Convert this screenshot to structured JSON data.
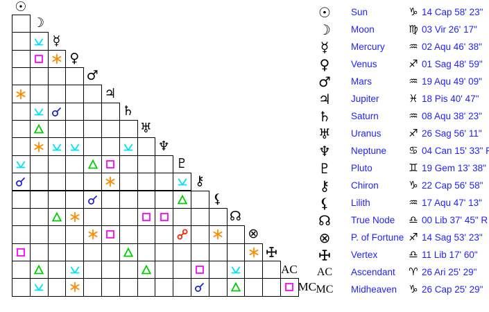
{
  "title": "Aspect grid with planet positions",
  "colors": {
    "conjunction": "#2222dd",
    "sextile": "#ff8c00",
    "square": "#ff00ff",
    "trine": "#00cc00",
    "quincunx": "#00e0ff",
    "opposition": "#ff2200",
    "legend_text": "#1f1fff",
    "glyph": "#000000"
  },
  "planets": [
    {
      "id": "sun",
      "glyph": "☉",
      "name": "Sun",
      "sign": "♑",
      "position": "14 Cap 58' 23\""
    },
    {
      "id": "moon",
      "glyph": "☽",
      "name": "Moon",
      "sign": "♍",
      "position": "03 Vir 26' 17\""
    },
    {
      "id": "mercury",
      "glyph": "☿",
      "name": "Mercury",
      "sign": "♒",
      "position": "02 Aqu 46' 38\""
    },
    {
      "id": "venus",
      "glyph": "♀",
      "name": "Venus",
      "sign": "♐",
      "position": "01 Sag 48' 59\""
    },
    {
      "id": "mars",
      "glyph": "♂",
      "name": "Mars",
      "sign": "♒",
      "position": "19 Aqu 49' 09\""
    },
    {
      "id": "jupiter",
      "glyph": "♃",
      "name": "Jupiter",
      "sign": "♓",
      "position": "18 Pis 40' 47\""
    },
    {
      "id": "saturn",
      "glyph": "♄",
      "name": "Saturn",
      "sign": "♒",
      "position": "08 Aqu 38' 23\""
    },
    {
      "id": "uranus",
      "glyph": "♅",
      "name": "Uranus",
      "sign": "♐",
      "position": "26 Sag 56' 11\""
    },
    {
      "id": "neptune",
      "glyph": "♆",
      "name": "Neptune",
      "sign": "♋",
      "position": "04 Can 15' 33\" R"
    },
    {
      "id": "pluto",
      "glyph": "♇",
      "name": "Pluto",
      "sign": "♊",
      "position": "19 Gem 13' 38\" R"
    },
    {
      "id": "chiron",
      "glyph": "⚷",
      "name": "Chiron",
      "sign": "♑",
      "position": "22 Cap 56' 58\""
    },
    {
      "id": "lilith",
      "glyph": "⚸",
      "name": "Lilith",
      "sign": "♒",
      "position": "17 Aqu 47' 13\""
    },
    {
      "id": "true-node",
      "glyph": "☊",
      "name": "True Node",
      "sign": "♎",
      "position": "00 Lib 37' 45\" R"
    },
    {
      "id": "fortune",
      "glyph": "⊗",
      "name": "P. of Fortune",
      "sign": "♐",
      "position": "14 Sag 53' 23\""
    },
    {
      "id": "vertex",
      "glyph": "svg-cross",
      "name": "Vertex",
      "sign": "♎",
      "position": "11 Lib 17' 60\""
    },
    {
      "id": "ascendant",
      "glyph": "AC",
      "name": "Ascendant",
      "sign": "♈",
      "position": "26 Ari 25' 29\""
    },
    {
      "id": "midheaven",
      "glyph": "MC",
      "name": "Midheaven",
      "sign": "♑",
      "position": "26 Cap 25' 29\""
    }
  ],
  "aspects": [
    {
      "r": 2,
      "c": 1,
      "t": "quincunx"
    },
    {
      "r": 3,
      "c": 1,
      "t": "square"
    },
    {
      "r": 3,
      "c": 2,
      "t": "sextile"
    },
    {
      "r": 5,
      "c": 0,
      "t": "sextile"
    },
    {
      "r": 6,
      "c": 1,
      "t": "quincunx"
    },
    {
      "r": 6,
      "c": 2,
      "t": "conjunction"
    },
    {
      "r": 7,
      "c": 1,
      "t": "trine"
    },
    {
      "r": 8,
      "c": 1,
      "t": "sextile"
    },
    {
      "r": 8,
      "c": 2,
      "t": "quincunx"
    },
    {
      "r": 8,
      "c": 3,
      "t": "quincunx"
    },
    {
      "r": 8,
      "c": 6,
      "t": "quincunx"
    },
    {
      "r": 9,
      "c": 0,
      "t": "quincunx"
    },
    {
      "r": 9,
      "c": 4,
      "t": "trine"
    },
    {
      "r": 9,
      "c": 5,
      "t": "square"
    },
    {
      "r": 10,
      "c": 0,
      "t": "conjunction"
    },
    {
      "r": 10,
      "c": 5,
      "t": "sextile"
    },
    {
      "r": 10,
      "c": 9,
      "t": "quincunx"
    },
    {
      "r": 11,
      "c": 4,
      "t": "conjunction"
    },
    {
      "r": 11,
      "c": 9,
      "t": "trine"
    },
    {
      "r": 12,
      "c": 2,
      "t": "trine"
    },
    {
      "r": 12,
      "c": 3,
      "t": "sextile"
    },
    {
      "r": 12,
      "c": 7,
      "t": "square"
    },
    {
      "r": 12,
      "c": 8,
      "t": "square"
    },
    {
      "r": 13,
      "c": 4,
      "t": "sextile"
    },
    {
      "r": 13,
      "c": 5,
      "t": "square"
    },
    {
      "r": 13,
      "c": 9,
      "t": "opposition"
    },
    {
      "r": 13,
      "c": 11,
      "t": "sextile"
    },
    {
      "r": 14,
      "c": 0,
      "t": "square"
    },
    {
      "r": 14,
      "c": 6,
      "t": "trine"
    },
    {
      "r": 14,
      "c": 13,
      "t": "sextile"
    },
    {
      "r": 15,
      "c": 1,
      "t": "trine"
    },
    {
      "r": 15,
      "c": 3,
      "t": "quincunx"
    },
    {
      "r": 15,
      "c": 7,
      "t": "trine"
    },
    {
      "r": 15,
      "c": 10,
      "t": "square"
    },
    {
      "r": 15,
      "c": 12,
      "t": "quincunx"
    },
    {
      "r": 16,
      "c": 1,
      "t": "quincunx"
    },
    {
      "r": 16,
      "c": 3,
      "t": "sextile"
    },
    {
      "r": 16,
      "c": 10,
      "t": "conjunction"
    },
    {
      "r": 16,
      "c": 12,
      "t": "trine"
    },
    {
      "r": 16,
      "c": 15,
      "t": "square"
    }
  ]
}
